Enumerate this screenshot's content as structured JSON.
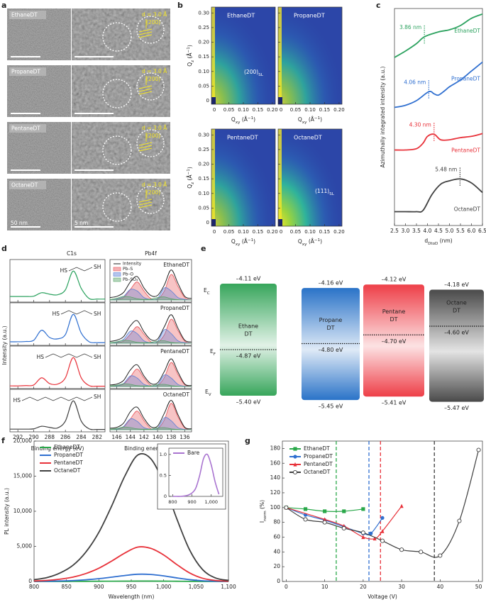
{
  "panel_labels": [
    "a",
    "b",
    "c",
    "d",
    "e",
    "f",
    "g"
  ],
  "tem": {
    "rows": [
      {
        "name": "EthaneDT",
        "spacing": "d = 3.0 Å",
        "plane": "(200)"
      },
      {
        "name": "PropaneDT",
        "spacing": "d = 3.0 Å",
        "plane": "(200)"
      },
      {
        "name": "PentaneDT",
        "spacing": "d = 3.0 Å",
        "plane": "(200)"
      },
      {
        "name": "OctaneDT",
        "spacing": "d = 3.0 Å",
        "plane": "(200)"
      }
    ],
    "scale_labels": [
      "50 nm",
      "5 nm"
    ]
  },
  "chart_data": [
    {
      "type": "heatmap",
      "panels": [
        {
          "name": "EthaneDT",
          "peak": [
            "(200)",
            "SL"
          ]
        },
        {
          "name": "PropaneDT"
        },
        {
          "name": "PentaneDT"
        },
        {
          "name": "OctaneDT",
          "peak": [
            "(111)",
            "SL"
          ]
        }
      ],
      "xlim": [
        -0.01,
        0.21
      ],
      "xticks": [
        0,
        0.05,
        {
          "value": 0.1,
          "label": "0.10"
        },
        0.15,
        {
          "value": 0.2,
          "label": "0.20"
        }
      ],
      "ylim": [
        -0.012,
        0.32
      ],
      "yticks": [
        0,
        0.05,
        {
          "value": 0.1,
          "label": "0.10"
        },
        0.15,
        {
          "value": 0.2,
          "label": "0.20"
        },
        0.25,
        {
          "value": 0.3,
          "label": "0.30"
        }
      ],
      "xlabel": [
        "Q",
        "xy",
        " (Å",
        "−1",
        ")"
      ],
      "ylabel": [
        "Q",
        "z",
        " (Å",
        "−1",
        ")"
      ]
    },
    {
      "type": "line",
      "xlim": [
        2.5,
        6.5
      ],
      "xticks": [
        2.5,
        {
          "value": 3,
          "label": "3.0"
        },
        3.5,
        {
          "value": 4,
          "label": "4.0"
        },
        4.5,
        {
          "value": 5,
          "label": "5.0"
        },
        5.5,
        {
          "value": 6,
          "label": "6.0"
        },
        6.5
      ],
      "ylim": [
        0,
        102
      ],
      "xlabel": [
        "d",
        "DtoD",
        " (nm)"
      ],
      "ylabel": "Azimuthally integrated intensity (a.u.)",
      "series": [
        {
          "name": "EthaneDT",
          "color": "#2ca25f",
          "x": [
            2.5,
            3.0,
            3.5,
            3.86,
            4.5,
            5.0,
            5.5,
            6.0,
            6.5
          ],
          "values": [
            79,
            82,
            85.5,
            88.7,
            91,
            92,
            94,
            97.4,
            99.4
          ],
          "peak": 3.86,
          "peak_label": "3.86 nm"
        },
        {
          "name": "PropaneDT",
          "color": "#2f6fd0",
          "x": [
            2.5,
            3.0,
            3.5,
            4.06,
            4.3,
            4.5,
            4.8,
            5.0,
            5.5,
            6.0,
            6.5
          ],
          "values": [
            55.5,
            56.5,
            58.7,
            62.9,
            61.9,
            61.3,
            63.5,
            65.2,
            68.4,
            72.6,
            76.8
          ],
          "peak": 4.06,
          "peak_label": "4.06 nm"
        },
        {
          "name": "PentaneDT",
          "color": "#e8323a",
          "x": [
            2.5,
            3.0,
            3.5,
            3.8,
            4.0,
            4.3,
            4.6,
            5.0,
            5.5,
            6.0,
            6.5
          ],
          "values": [
            35.5,
            35.5,
            36.1,
            38.7,
            41.9,
            42.9,
            40.3,
            40.3,
            41.3,
            41.9,
            43.2
          ],
          "peak": 4.3,
          "peak_label": "4.30 nm"
        },
        {
          "name": "OctaneDT",
          "color": "#404040",
          "x": [
            2.5,
            3.0,
            3.5,
            3.8,
            4.2,
            4.6,
            5.0,
            5.5,
            6.0,
            6.5
          ],
          "values": [
            6.5,
            6.5,
            6.5,
            7.1,
            14.5,
            19.4,
            21,
            21.9,
            20,
            15.5
          ],
          "peak": 5.48,
          "peak_label": "5.48 nm"
        }
      ]
    },
    {
      "type": "stack",
      "title": "C1s",
      "xlim": [
        293,
        281
      ],
      "xticks": [
        292,
        290,
        288,
        286,
        284,
        282
      ],
      "ylim": [
        0,
        1.3
      ],
      "xlabel": "Binding energy (eV)",
      "ylabel": "Intensity (a.u.)",
      "chain": [
        "HS",
        "SH"
      ],
      "x": [
        293,
        292,
        291,
        290,
        289,
        288,
        287,
        286,
        285,
        284,
        283,
        282,
        281
      ],
      "rows": [
        {
          "color": "#2ca25f",
          "values": [
            0.12,
            0.12,
            0.12,
            0.13,
            0.25,
            0.2,
            0.18,
            0.35,
            1.0,
            0.4,
            0.05,
            0.03,
            0.03
          ]
        },
        {
          "color": "#2f6fd0",
          "values": [
            0.05,
            0.05,
            0.06,
            0.1,
            0.45,
            0.2,
            0.15,
            0.3,
            1.0,
            0.35,
            0.05,
            0.02,
            0.02
          ]
        },
        {
          "color": "#e8323a",
          "values": [
            0.02,
            0.02,
            0.03,
            0.05,
            0.3,
            0.1,
            0.08,
            0.3,
            1.0,
            0.3,
            0.03,
            0.01,
            0.01
          ]
        },
        {
          "color": "#404040",
          "values": [
            0.02,
            0.02,
            0.02,
            0.03,
            0.12,
            0.08,
            0.06,
            0.3,
            1.0,
            0.3,
            0.03,
            0.01,
            0.01
          ]
        }
      ]
    },
    {
      "type": "stack",
      "title": "Pb4f",
      "xlim": [
        147,
        135
      ],
      "xticks": [
        146,
        144,
        142,
        140,
        138,
        136
      ],
      "ylim": [
        0,
        1.25
      ],
      "xlabel": "Binding energy (eV)",
      "x": [
        147,
        146,
        145,
        144,
        143,
        142,
        141,
        140,
        139,
        138,
        137,
        136,
        135
      ],
      "components": [
        {
          "name": "Intensity",
          "color": "#222222"
        },
        {
          "name": "Pb–S",
          "color": "#e8555a"
        },
        {
          "name": "Pb–O",
          "color": "#5b7fd6"
        },
        {
          "name": "Pb–SO₄",
          "color": "#5aa469"
        }
      ],
      "rows": [
        {
          "name": "EthaneDT",
          "values": [
            [
              0.08,
              0.12,
              0.25,
              0.6,
              0.78,
              0.4,
              0.15,
              0.15,
              0.5,
              1.0,
              0.55,
              0.12,
              0.05
            ],
            [
              0,
              0.02,
              0.08,
              0.35,
              0.6,
              0.3,
              0.05,
              0.03,
              0.3,
              0.85,
              0.45,
              0.08,
              0
            ],
            [
              0,
              0.03,
              0.12,
              0.35,
              0.3,
              0.08,
              0.02,
              0.05,
              0.4,
              0.3,
              0.08,
              0.02,
              0
            ],
            [
              0.02,
              0.06,
              0.12,
              0.1,
              0.04,
              0.02,
              0.03,
              0.08,
              0.1,
              0.04,
              0.01,
              0,
              0
            ]
          ]
        },
        {
          "name": "PropaneDT",
          "values": [
            [
              0.06,
              0.1,
              0.22,
              0.58,
              0.75,
              0.38,
              0.12,
              0.14,
              0.55,
              0.95,
              0.5,
              0.1,
              0.04
            ],
            [
              0,
              0.02,
              0.07,
              0.3,
              0.55,
              0.3,
              0.05,
              0.03,
              0.28,
              0.8,
              0.42,
              0.07,
              0
            ],
            [
              0,
              0.03,
              0.13,
              0.4,
              0.32,
              0.08,
              0.02,
              0.06,
              0.45,
              0.32,
              0.08,
              0.02,
              0
            ],
            [
              0.02,
              0.05,
              0.1,
              0.08,
              0.03,
              0.02,
              0.03,
              0.07,
              0.08,
              0.03,
              0.01,
              0,
              0
            ]
          ]
        },
        {
          "name": "PentaneDT",
          "values": [
            [
              0.05,
              0.08,
              0.2,
              0.55,
              0.72,
              0.35,
              0.1,
              0.12,
              0.5,
              0.92,
              0.48,
              0.08,
              0.03
            ],
            [
              0,
              0.02,
              0.08,
              0.32,
              0.58,
              0.28,
              0.04,
              0.03,
              0.3,
              0.8,
              0.4,
              0.06,
              0
            ],
            [
              0,
              0.02,
              0.1,
              0.35,
              0.28,
              0.07,
              0.02,
              0.05,
              0.38,
              0.28,
              0.07,
              0.01,
              0
            ],
            [
              0.02,
              0.04,
              0.09,
              0.07,
              0.03,
              0.02,
              0.02,
              0.06,
              0.07,
              0.03,
              0.01,
              0,
              0
            ]
          ]
        },
        {
          "name": "OctaneDT",
          "values": [
            [
              0.05,
              0.08,
              0.22,
              0.6,
              0.75,
              0.38,
              0.1,
              0.12,
              0.55,
              0.98,
              0.5,
              0.08,
              0.03
            ],
            [
              0,
              0.02,
              0.09,
              0.36,
              0.62,
              0.3,
              0.04,
              0.03,
              0.33,
              0.88,
              0.43,
              0.06,
              0
            ],
            [
              0,
              0.02,
              0.11,
              0.36,
              0.28,
              0.07,
              0.02,
              0.05,
              0.4,
              0.3,
              0.07,
              0.01,
              0
            ],
            [
              0.02,
              0.04,
              0.09,
              0.07,
              0.03,
              0.02,
              0.02,
              0.06,
              0.07,
              0.03,
              0.01,
              0,
              0
            ]
          ]
        }
      ]
    },
    {
      "type": "bands",
      "ylim": [
        -5.6,
        -4.0
      ],
      "levels": [
        [
          "E",
          "C"
        ],
        [
          "E",
          "F"
        ],
        [
          "E",
          "V"
        ]
      ],
      "materials": [
        {
          "name": [
            "Ethane",
            "DT"
          ],
          "color": "#38a65c",
          "cb": -4.11,
          "cb_label": "–4.11 eV",
          "ef": -4.87,
          "ef_label": "–4.87 eV",
          "vb": -5.4,
          "vb_label": "–5.40 eV"
        },
        {
          "name": [
            "Propane",
            "DT"
          ],
          "color": "#2a73c8",
          "cb": -4.16,
          "cb_label": "–4.16 eV",
          "ef": -4.8,
          "ef_label": "–4.80 eV",
          "vb": -5.45,
          "vb_label": "–5.45 eV"
        },
        {
          "name": [
            "Pentane",
            "DT"
          ],
          "color": "#ee3f48",
          "cb": -4.12,
          "cb_label": "–4.12 eV",
          "ef": -4.7,
          "ef_label": "–4.70 eV",
          "vb": -5.41,
          "vb_label": "–5.41 eV"
        },
        {
          "name": [
            "Octane",
            "DT"
          ],
          "color": "#4a4a4a",
          "cb": -4.18,
          "cb_label": "–4.18 eV",
          "ef": -4.6,
          "ef_label": "–4.60 eV",
          "vb": -5.47,
          "vb_label": "–5.47 eV"
        }
      ]
    },
    {
      "type": "line",
      "xlim": [
        800,
        1100
      ],
      "xticks": [
        800,
        850,
        900,
        950,
        {
          "value": 1000,
          "label": "1,000"
        },
        {
          "value": 1050,
          "label": "1,050"
        },
        {
          "value": 1100,
          "label": "1,100"
        }
      ],
      "ylim": [
        0,
        20000
      ],
      "yticks": [
        0,
        {
          "value": 5000,
          "label": "5,000"
        },
        {
          "value": 10000,
          "label": "10,000"
        },
        {
          "value": 15000,
          "label": "15,000"
        },
        {
          "value": 20000,
          "label": "20,000"
        }
      ],
      "xlabel": "Wavelength (nm)",
      "ylabel": "PL intensity (a.u.)",
      "legend": "upper left",
      "x": [
        800,
        820,
        840,
        860,
        880,
        900,
        920,
        940,
        960,
        980,
        1000,
        1020,
        1040,
        1060,
        1080,
        1100
      ],
      "series": [
        {
          "name": "EthaneDT",
          "color": "#2aa84a",
          "values": [
            0,
            0,
            0,
            10,
            20,
            30,
            40,
            50,
            60,
            55,
            45,
            30,
            15,
            5,
            0,
            0
          ]
        },
        {
          "name": "PropaneDT",
          "color": "#2f6fd0",
          "values": [
            15,
            30,
            70,
            130,
            240,
            400,
            620,
            850,
            1030,
            1000,
            800,
            510,
            260,
            100,
            30,
            10
          ]
        },
        {
          "name": "PentaneDT",
          "color": "#e8323a",
          "values": [
            70,
            150,
            330,
            620,
            1130,
            1890,
            2920,
            4050,
            4900,
            4720,
            3780,
            2430,
            1220,
            460,
            140,
            40
          ]
        },
        {
          "name": "OctaneDT",
          "color": "#404040",
          "values": [
            250,
            550,
            1200,
            2300,
            4200,
            7000,
            10800,
            15000,
            18000,
            17500,
            14000,
            9000,
            4500,
            1700,
            500,
            150
          ]
        }
      ]
    },
    {
      "type": "line",
      "xlim": [
        780,
        1060
      ],
      "xticks": [
        800,
        900,
        {
          "value": 1000,
          "label": "1,000"
        }
      ],
      "ylim": [
        0,
        1.15
      ],
      "yticks": [
        0,
        0.5,
        {
          "value": 1,
          "label": "1.0"
        }
      ],
      "legend": "upper left",
      "x": [
        800,
        820,
        840,
        860,
        880,
        900,
        920,
        940,
        960,
        980,
        1000,
        1020,
        1040
      ],
      "series": [
        {
          "name": "Bare",
          "color": "#a974d0",
          "values": [
            0,
            0,
            0,
            0.01,
            0.03,
            0.08,
            0.2,
            0.5,
            0.9,
            1.0,
            0.75,
            0.35,
            0.05
          ]
        }
      ]
    },
    {
      "type": "scatter",
      "xlim": [
        -1,
        51
      ],
      "xticks": [
        0,
        10,
        20,
        30,
        40,
        50
      ],
      "ylim": [
        0,
        190
      ],
      "yticks": [
        0,
        20,
        40,
        60,
        80,
        100,
        120,
        140,
        160,
        180
      ],
      "xlabel": "Voltage (V)",
      "ylabel": [
        "I",
        "norm",
        " (%)"
      ],
      "legend": "upper left",
      "series": [
        {
          "name": "EthaneDT",
          "color": "#2aa84a",
          "marker": "square",
          "x": [
            0,
            5,
            10,
            15,
            20
          ],
          "values": [
            100,
            98,
            95,
            95,
            98
          ],
          "threshold": 13
        },
        {
          "name": "PropaneDT",
          "color": "#2f6fd0",
          "marker": "circle",
          "x": [
            0,
            5,
            10,
            15,
            20,
            22,
            25
          ],
          "values": [
            100,
            90,
            83,
            74,
            65,
            65,
            86
          ],
          "threshold": 21.5
        },
        {
          "name": "PentaneDT",
          "color": "#e8323a",
          "marker": "triangle",
          "x": [
            0,
            10,
            15,
            20,
            23,
            25,
            30
          ],
          "values": [
            100,
            84,
            75,
            60,
            58,
            68,
            102
          ],
          "threshold": 24.5
        },
        {
          "name": "OctaneDT",
          "color": "#404040",
          "marker": "open-circle",
          "x": [
            0,
            5,
            10,
            15,
            20,
            25,
            30,
            35,
            40,
            45,
            50
          ],
          "values": [
            100,
            84,
            80,
            72,
            66,
            55,
            43,
            40,
            35,
            82,
            178
          ],
          "threshold": 38.5
        }
      ]
    }
  ]
}
